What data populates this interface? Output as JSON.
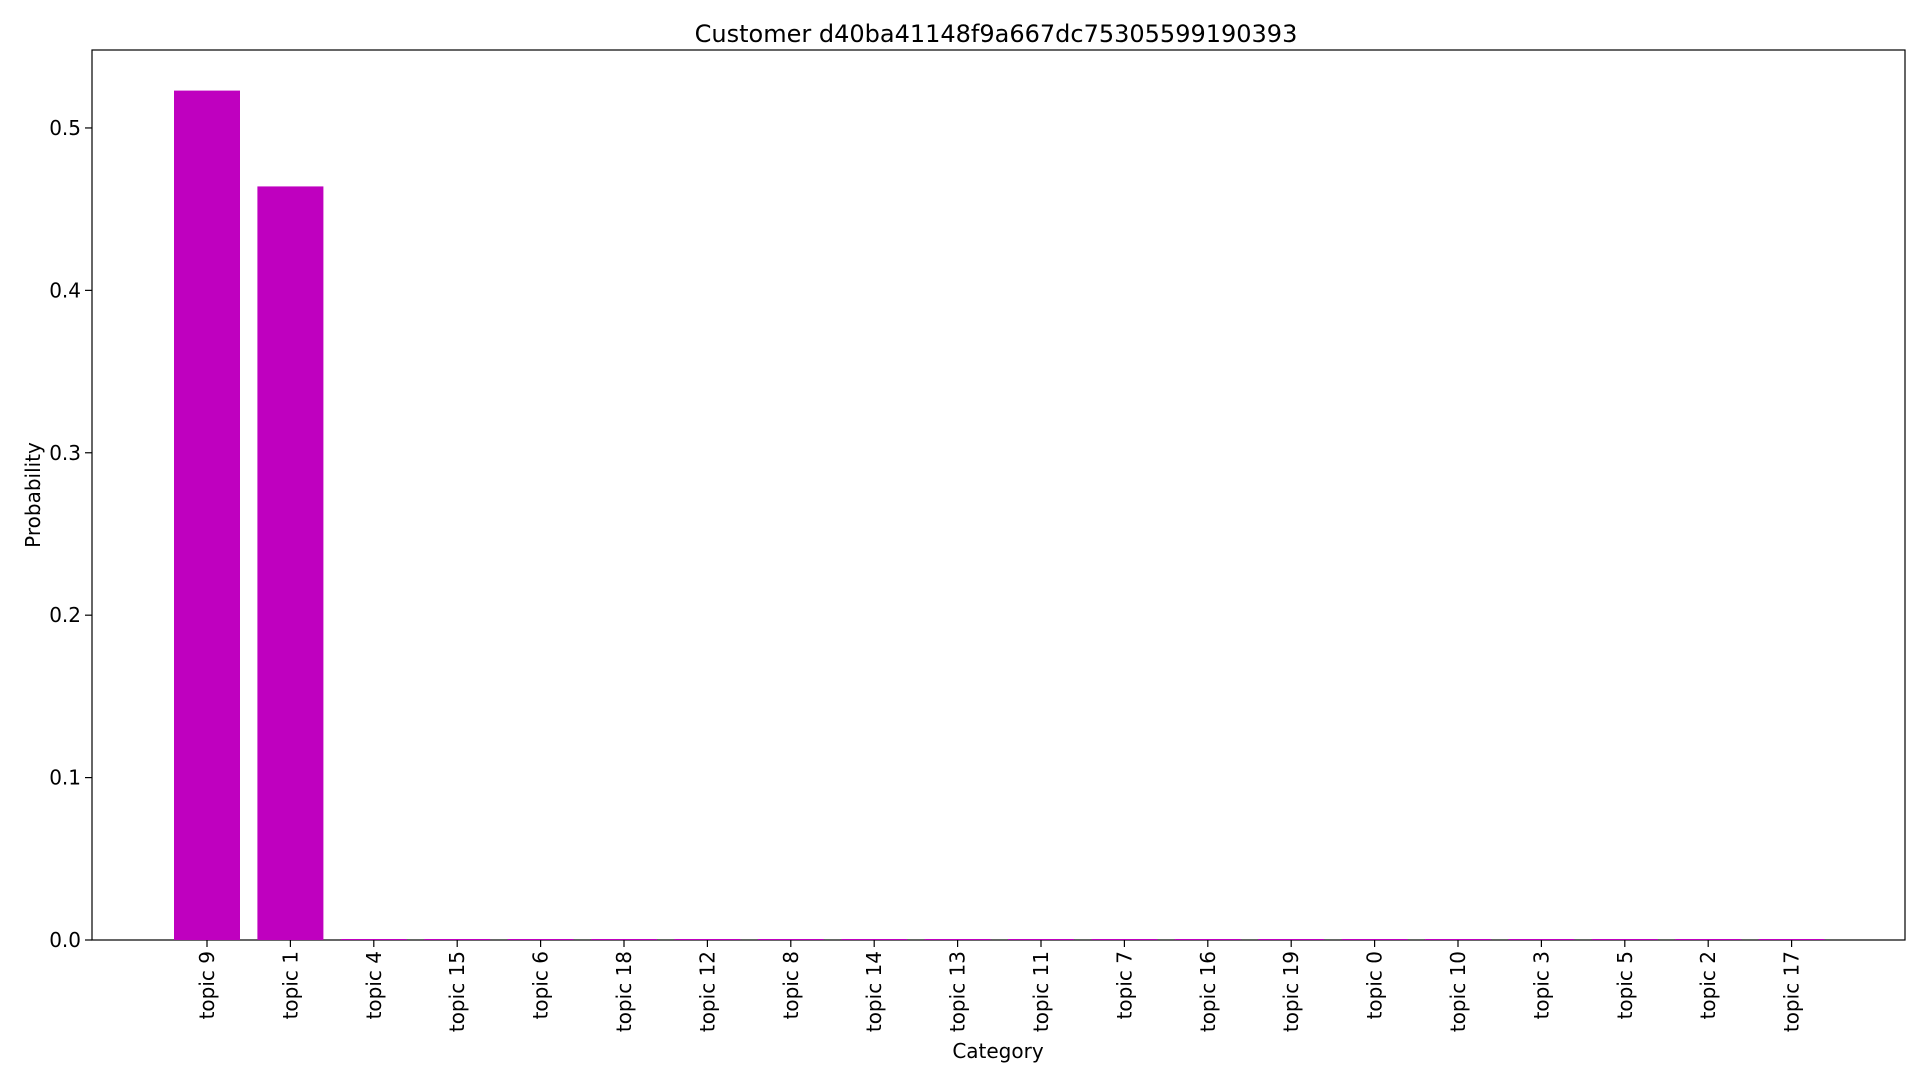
{
  "chart_data": {
    "type": "bar",
    "title": "Customer d40ba41148f9a667dc75305599190393",
    "xlabel": "Category",
    "ylabel": "Probability",
    "categories": [
      "topic 9",
      "topic 1",
      "topic 4",
      "topic 15",
      "topic 6",
      "topic 18",
      "topic 12",
      "topic 8",
      "topic 14",
      "topic 13",
      "topic 11",
      "topic 7",
      "topic 16",
      "topic 19",
      "topic 0",
      "topic 10",
      "topic 3",
      "topic 5",
      "topic 2",
      "topic 17"
    ],
    "values": [
      0.523,
      0.464,
      0.0005,
      0.0005,
      0.0005,
      0.0005,
      0.0005,
      0.0005,
      0.0005,
      0.0005,
      0.0005,
      0.0005,
      0.0005,
      0.0005,
      0.0005,
      0.0005,
      0.0005,
      0.0005,
      0.0005,
      0.0005
    ],
    "ylim": [
      0,
      0.548
    ],
    "yticks": [
      0.0,
      0.1,
      0.2,
      0.3,
      0.4,
      0.5
    ],
    "ytick_labels": [
      "0.0",
      "0.1",
      "0.2",
      "0.3",
      "0.4",
      "0.5"
    ],
    "bar_color": "#bf00bf",
    "grid": false,
    "legend": false
  }
}
